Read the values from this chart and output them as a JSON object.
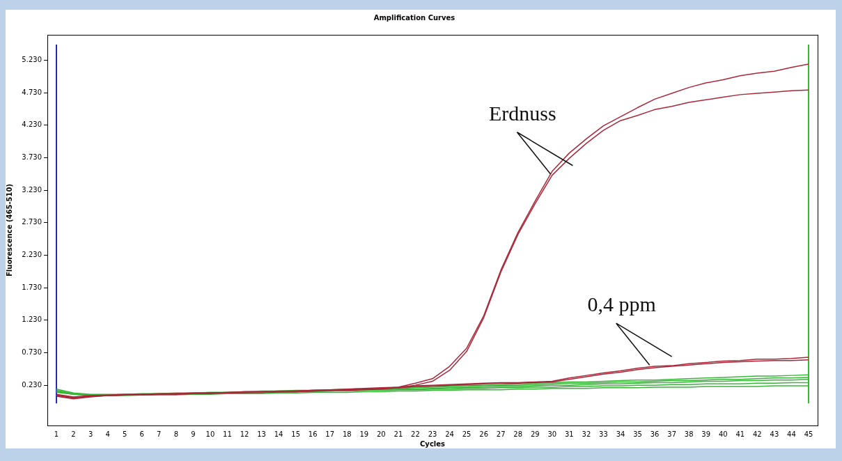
{
  "chart_data": {
    "type": "line",
    "title": "Amplification Curves",
    "xlabel": "Cycles",
    "ylabel": "Fluorescence (465-510)",
    "x": [
      1,
      2,
      3,
      4,
      5,
      6,
      7,
      8,
      9,
      10,
      11,
      12,
      13,
      14,
      15,
      16,
      17,
      18,
      19,
      20,
      21,
      22,
      23,
      24,
      25,
      26,
      27,
      28,
      29,
      30,
      31,
      32,
      33,
      34,
      35,
      36,
      37,
      38,
      39,
      40,
      41,
      42,
      43,
      44,
      45
    ],
    "series": [
      {
        "color": "#a8283a",
        "values": [
          0.07,
          0.03,
          0.06,
          0.07,
          0.08,
          0.09,
          0.09,
          0.1,
          0.1,
          0.11,
          0.12,
          0.12,
          0.13,
          0.13,
          0.14,
          0.15,
          0.15,
          0.16,
          0.17,
          0.18,
          0.2,
          0.26,
          0.33,
          0.52,
          0.8,
          1.3,
          2.0,
          2.58,
          3.06,
          3.52,
          3.8,
          4.02,
          4.22,
          4.36,
          4.5,
          4.63,
          4.72,
          4.81,
          4.88,
          4.93,
          4.99,
          5.03,
          5.06,
          5.12,
          5.17
        ]
      },
      {
        "color": "#a8283a",
        "values": [
          0.06,
          0.02,
          0.05,
          0.07,
          0.08,
          0.08,
          0.09,
          0.09,
          0.1,
          0.11,
          0.11,
          0.12,
          0.12,
          0.13,
          0.13,
          0.14,
          0.15,
          0.15,
          0.16,
          0.17,
          0.19,
          0.23,
          0.29,
          0.46,
          0.75,
          1.27,
          1.97,
          2.55,
          3.02,
          3.46,
          3.72,
          3.95,
          4.15,
          4.3,
          4.38,
          4.47,
          4.52,
          4.58,
          4.62,
          4.66,
          4.7,
          4.72,
          4.74,
          4.76,
          4.77
        ]
      },
      {
        "color": "#a8283a",
        "values": [
          0.09,
          0.05,
          0.07,
          0.08,
          0.09,
          0.09,
          0.1,
          0.1,
          0.11,
          0.11,
          0.12,
          0.13,
          0.13,
          0.14,
          0.14,
          0.15,
          0.16,
          0.17,
          0.18,
          0.19,
          0.2,
          0.22,
          0.23,
          0.24,
          0.25,
          0.26,
          0.27,
          0.27,
          0.28,
          0.29,
          0.34,
          0.38,
          0.42,
          0.45,
          0.49,
          0.52,
          0.53,
          0.56,
          0.58,
          0.6,
          0.61,
          0.63,
          0.63,
          0.64,
          0.66
        ]
      },
      {
        "color": "#a8283a",
        "values": [
          0.08,
          0.04,
          0.06,
          0.07,
          0.08,
          0.08,
          0.09,
          0.09,
          0.1,
          0.1,
          0.11,
          0.12,
          0.12,
          0.13,
          0.13,
          0.14,
          0.15,
          0.16,
          0.17,
          0.18,
          0.19,
          0.21,
          0.22,
          0.23,
          0.24,
          0.25,
          0.26,
          0.26,
          0.27,
          0.28,
          0.32,
          0.36,
          0.4,
          0.43,
          0.47,
          0.5,
          0.52,
          0.54,
          0.56,
          0.58,
          0.59,
          0.6,
          0.61,
          0.61,
          0.62
        ]
      },
      {
        "color": "#3cb43c",
        "values": [
          0.17,
          0.11,
          0.09,
          0.09,
          0.09,
          0.1,
          0.1,
          0.11,
          0.11,
          0.12,
          0.12,
          0.13,
          0.14,
          0.14,
          0.15,
          0.15,
          0.16,
          0.17,
          0.17,
          0.18,
          0.19,
          0.2,
          0.21,
          0.22,
          0.23,
          0.23,
          0.24,
          0.25,
          0.26,
          0.27,
          0.28,
          0.28,
          0.29,
          0.3,
          0.31,
          0.31,
          0.32,
          0.33,
          0.34,
          0.35,
          0.36,
          0.37,
          0.37,
          0.38,
          0.39
        ]
      },
      {
        "color": "#3cb43c",
        "values": [
          0.15,
          0.1,
          0.08,
          0.08,
          0.09,
          0.09,
          0.1,
          0.1,
          0.11,
          0.12,
          0.12,
          0.13,
          0.13,
          0.14,
          0.14,
          0.15,
          0.16,
          0.16,
          0.17,
          0.17,
          0.18,
          0.19,
          0.2,
          0.21,
          0.21,
          0.22,
          0.23,
          0.23,
          0.24,
          0.25,
          0.26,
          0.26,
          0.27,
          0.28,
          0.28,
          0.29,
          0.3,
          0.3,
          0.31,
          0.32,
          0.32,
          0.33,
          0.34,
          0.34,
          0.35
        ]
      },
      {
        "color": "#3cb43c",
        "values": [
          0.14,
          0.1,
          0.08,
          0.08,
          0.08,
          0.09,
          0.09,
          0.1,
          0.1,
          0.11,
          0.11,
          0.12,
          0.12,
          0.13,
          0.13,
          0.14,
          0.14,
          0.15,
          0.15,
          0.16,
          0.17,
          0.17,
          0.18,
          0.19,
          0.19,
          0.2,
          0.21,
          0.21,
          0.22,
          0.23,
          0.23,
          0.24,
          0.25,
          0.25,
          0.26,
          0.27,
          0.27,
          0.28,
          0.29,
          0.29,
          0.3,
          0.3,
          0.31,
          0.31,
          0.32
        ]
      },
      {
        "color": "#3cb43c",
        "values": [
          0.13,
          0.09,
          0.08,
          0.08,
          0.08,
          0.08,
          0.09,
          0.09,
          0.1,
          0.1,
          0.11,
          0.11,
          0.12,
          0.12,
          0.13,
          0.13,
          0.14,
          0.14,
          0.15,
          0.15,
          0.16,
          0.16,
          0.17,
          0.17,
          0.18,
          0.18,
          0.19,
          0.19,
          0.2,
          0.2,
          0.21,
          0.21,
          0.22,
          0.22,
          0.23,
          0.23,
          0.24,
          0.24,
          0.25,
          0.25,
          0.25,
          0.26,
          0.26,
          0.27,
          0.27
        ]
      },
      {
        "color": "#3cb43c",
        "values": [
          0.12,
          0.09,
          0.07,
          0.07,
          0.07,
          0.08,
          0.08,
          0.08,
          0.09,
          0.09,
          0.1,
          0.1,
          0.1,
          0.11,
          0.11,
          0.12,
          0.12,
          0.12,
          0.13,
          0.13,
          0.14,
          0.14,
          0.15,
          0.15,
          0.16,
          0.16,
          0.16,
          0.17,
          0.17,
          0.18,
          0.18,
          0.18,
          0.19,
          0.19,
          0.19,
          0.2,
          0.2,
          0.2,
          0.21,
          0.21,
          0.21,
          0.21,
          0.22,
          0.22,
          0.22
        ]
      }
    ],
    "xlim": [
      0.47,
      45.53
    ],
    "xticks": [
      1,
      2,
      3,
      4,
      5,
      6,
      7,
      8,
      9,
      10,
      11,
      12,
      13,
      14,
      15,
      16,
      17,
      18,
      19,
      20,
      21,
      22,
      23,
      24,
      25,
      26,
      27,
      28,
      29,
      30,
      31,
      32,
      33,
      34,
      35,
      36,
      37,
      38,
      39,
      40,
      41,
      42,
      43,
      44,
      45
    ],
    "ylim": [
      -0.39,
      5.62
    ],
    "yticks": [
      {
        "value": 0.23,
        "label": "0.230"
      },
      {
        "value": 0.73,
        "label": "0.730"
      },
      {
        "value": 1.23,
        "label": "1.230"
      },
      {
        "value": 1.73,
        "label": "1.730"
      },
      {
        "value": 2.23,
        "label": "2.230"
      },
      {
        "value": 2.73,
        "label": "2.730"
      },
      {
        "value": 3.23,
        "label": "3.230"
      },
      {
        "value": 3.73,
        "label": "3.730"
      },
      {
        "value": 4.23,
        "label": "4.230"
      },
      {
        "value": 4.73,
        "label": "4.730"
      },
      {
        "value": 5.23,
        "label": "5.230"
      }
    ],
    "ref_lines": [
      {
        "axis": "x",
        "value": 1,
        "color": "#2828b4"
      },
      {
        "axis": "x",
        "value": 45,
        "color": "#3cb43c"
      }
    ],
    "annotations": [
      {
        "text": "Erdnuss",
        "x": 29.9,
        "y": 3.48
      },
      {
        "text": "0,4 ppm",
        "x": 35.7,
        "y": 0.54
      }
    ],
    "grid": false,
    "legend": false,
    "marker": "none",
    "line_style": "solid"
  }
}
